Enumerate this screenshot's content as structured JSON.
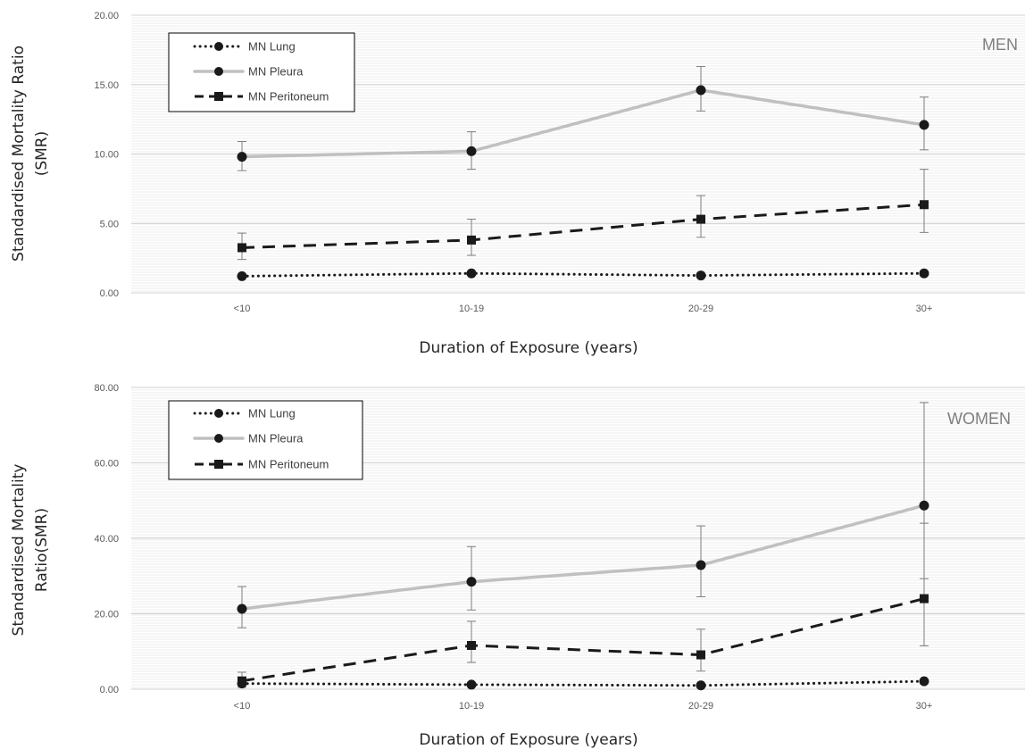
{
  "chart_data": [
    {
      "type": "line",
      "panel_label": "MEN",
      "categories": [
        "<10",
        "10-19",
        "20-29",
        "30+"
      ],
      "xlabel": "Duration of Exposure (years)",
      "ylabel_lines": [
        "Standardised Mortality Ratio",
        "(SMR)"
      ],
      "ylim": [
        0,
        20
      ],
      "yticks": [
        "0.00",
        "5.00",
        "10.00",
        "15.00",
        "20.00"
      ],
      "ytick_values": [
        0,
        5,
        10,
        15,
        20
      ],
      "legend_position": "top-left",
      "grid": true,
      "series": [
        {
          "name": "MN Lung",
          "style": "dotted",
          "marker": "circle",
          "color": "#1a1a1a",
          "values": [
            1.2,
            1.4,
            1.25,
            1.4
          ],
          "lower": [
            null,
            null,
            null,
            null
          ],
          "upper": [
            null,
            null,
            null,
            null
          ]
        },
        {
          "name": "MN Pleura",
          "style": "solid",
          "marker": "circle",
          "color": "#c0c0c0",
          "values": [
            9.8,
            10.2,
            14.6,
            12.1
          ],
          "lower": [
            8.8,
            8.9,
            13.1,
            10.3
          ],
          "upper": [
            10.9,
            11.6,
            16.3,
            14.1
          ]
        },
        {
          "name": "MN Peritoneum",
          "style": "dashed",
          "marker": "square",
          "color": "#1a1a1a",
          "values": [
            3.25,
            3.8,
            5.3,
            6.35
          ],
          "lower": [
            2.4,
            2.7,
            4.0,
            4.35
          ],
          "upper": [
            4.3,
            5.3,
            7.0,
            8.9
          ]
        }
      ]
    },
    {
      "type": "line",
      "panel_label": "WOMEN",
      "categories": [
        "<10",
        "10-19",
        "20-29",
        "30+"
      ],
      "xlabel": "Duration of Exposure (years)",
      "ylabel_lines": [
        "Standardised Mortality",
        "Ratio(SMR)"
      ],
      "ylim": [
        0,
        80
      ],
      "yticks": [
        "0.00",
        "20.00",
        "40.00",
        "60.00",
        "80.00"
      ],
      "ytick_values": [
        0,
        20,
        40,
        60,
        80
      ],
      "legend_position": "top-left",
      "grid": true,
      "series": [
        {
          "name": "MN Lung",
          "style": "dotted",
          "marker": "circle",
          "color": "#1a1a1a",
          "values": [
            1.5,
            1.2,
            1.0,
            2.1
          ],
          "lower": [
            null,
            null,
            null,
            null
          ],
          "upper": [
            null,
            null,
            null,
            null
          ]
        },
        {
          "name": "MN Pleura",
          "style": "solid",
          "marker": "circle",
          "color": "#c0c0c0",
          "values": [
            21.3,
            28.5,
            32.9,
            48.7
          ],
          "lower": [
            16.3,
            21.0,
            24.5,
            29.3
          ],
          "upper": [
            27.2,
            37.8,
            43.3,
            76.0
          ]
        },
        {
          "name": "MN Peritoneum",
          "style": "dashed",
          "marker": "square",
          "color": "#1a1a1a",
          "values": [
            2.2,
            11.6,
            9.1,
            24.0
          ],
          "lower": [
            0.5,
            7.1,
            4.8,
            11.5
          ],
          "upper": [
            4.5,
            18.0,
            15.9,
            44.0
          ]
        }
      ]
    }
  ]
}
